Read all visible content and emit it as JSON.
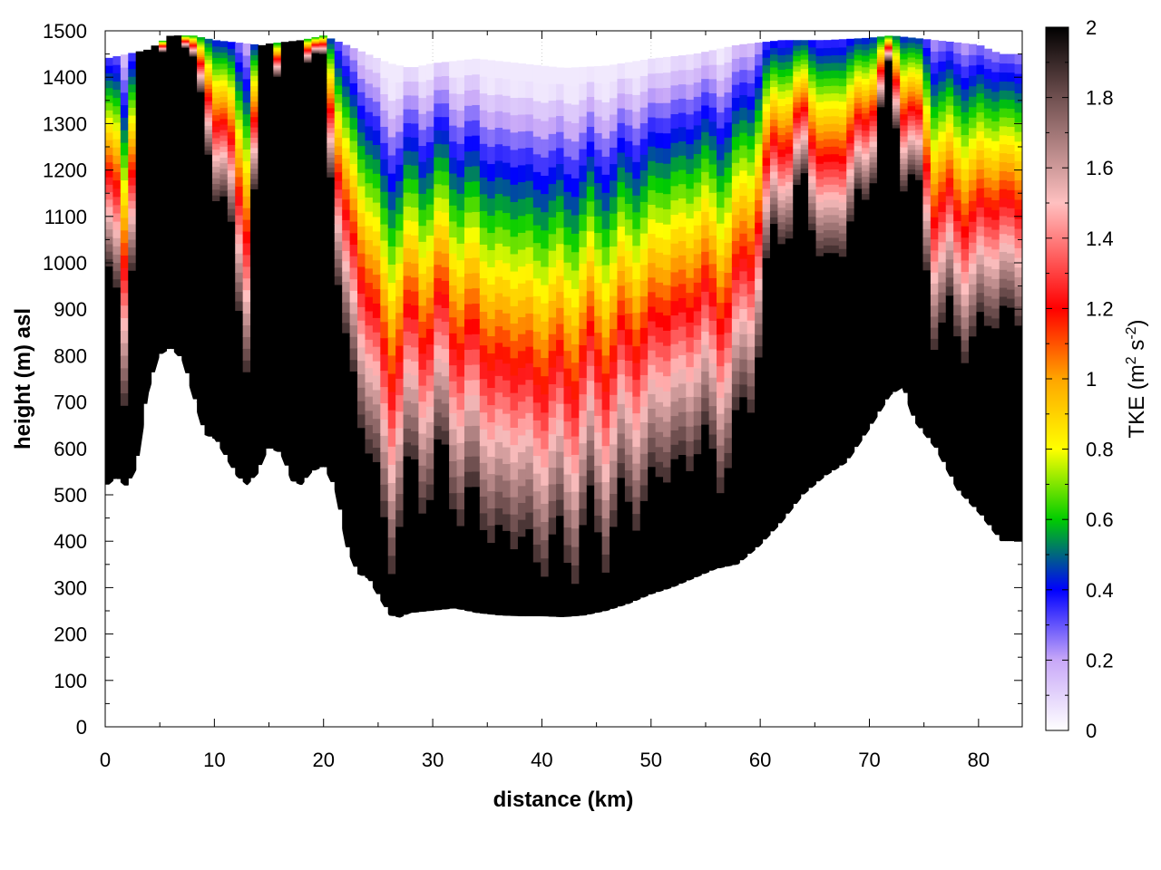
{
  "chart_data": {
    "type": "heatmap",
    "title": "",
    "xlabel": "distance (km)",
    "ylabel": "height (m) asl",
    "colorbar_label": "TKE (m² s⁻²)",
    "colorbar_label_parts": {
      "base": "TKE (m",
      "sup1": "2",
      "mid": " s",
      "sup2": "-2",
      "end": ")"
    },
    "xlim": [
      0,
      84
    ],
    "ylim": [
      0,
      1500
    ],
    "clim": [
      0,
      2
    ],
    "x_ticks": [
      0,
      10,
      20,
      30,
      40,
      50,
      60,
      70,
      80
    ],
    "y_ticks": [
      0,
      100,
      200,
      300,
      400,
      500,
      600,
      700,
      800,
      900,
      1000,
      1100,
      1200,
      1300,
      1400,
      1500
    ],
    "colorbar_ticks": [
      0,
      0.2,
      0.4,
      0.6,
      0.8,
      1,
      1.2,
      1.4,
      1.6,
      1.8,
      2
    ],
    "grid": true,
    "colormap": [
      {
        "v": 0.0,
        "c": "#ffffff"
      },
      {
        "v": 0.2,
        "c": "#c8a8f8"
      },
      {
        "v": 0.4,
        "c": "#0000ff"
      },
      {
        "v": 0.6,
        "c": "#00cc00"
      },
      {
        "v": 0.8,
        "c": "#ffff00"
      },
      {
        "v": 1.0,
        "c": "#ffa500"
      },
      {
        "v": 1.2,
        "c": "#ff0000"
      },
      {
        "v": 1.5,
        "c": "#ffc0c0"
      },
      {
        "v": 1.8,
        "c": "#705050"
      },
      {
        "v": 2.0,
        "c": "#000000"
      }
    ],
    "terrain": {
      "x_km": [
        0,
        1,
        2,
        3,
        4,
        5,
        6,
        7,
        8,
        9,
        10,
        11,
        12,
        13,
        14,
        15,
        16,
        17,
        18,
        19,
        20,
        21,
        22,
        23,
        24,
        25,
        26,
        27,
        28,
        30,
        32,
        34,
        36,
        38,
        40,
        42,
        44,
        46,
        48,
        50,
        52,
        54,
        56,
        58,
        60,
        62,
        64,
        66,
        68,
        70,
        72,
        73,
        74,
        76,
        78,
        80,
        82,
        84
      ],
      "height_m": [
        515,
        535,
        515,
        560,
        720,
        800,
        815,
        790,
        710,
        630,
        620,
        580,
        540,
        520,
        545,
        600,
        590,
        530,
        520,
        550,
        560,
        510,
        390,
        330,
        320,
        280,
        240,
        235,
        245,
        250,
        255,
        245,
        240,
        238,
        238,
        236,
        240,
        250,
        265,
        285,
        300,
        320,
        340,
        350,
        390,
        440,
        500,
        540,
        570,
        640,
        715,
        730,
        660,
        600,
        510,
        460,
        400,
        400
      ]
    },
    "model_top": {
      "x_km": [
        0,
        2,
        4,
        6,
        8,
        10,
        14,
        18,
        20,
        22,
        24,
        26,
        28,
        30,
        34,
        38,
        42,
        46,
        50,
        54,
        58,
        62,
        66,
        70,
        72,
        76,
        80,
        82,
        84
      ],
      "height_m": [
        1440,
        1450,
        1460,
        1490,
        1490,
        1480,
        1470,
        1480,
        1490,
        1470,
        1450,
        1430,
        1420,
        1430,
        1440,
        1430,
        1420,
        1425,
        1440,
        1450,
        1470,
        1480,
        1480,
        1485,
        1490,
        1480,
        1470,
        1450,
        1450
      ]
    },
    "tke_layer_top": {
      "x_km": [
        0,
        1,
        2,
        3,
        4,
        5,
        6,
        7,
        8,
        9,
        10,
        11,
        12,
        13,
        14,
        15,
        16,
        17,
        18,
        19,
        20,
        21,
        22,
        23,
        24,
        25,
        26,
        27,
        28,
        30,
        32,
        34,
        36,
        38,
        40,
        42,
        44,
        46,
        48,
        50,
        52,
        54,
        56,
        58,
        60,
        62,
        64,
        66,
        68,
        70,
        72,
        74,
        76,
        78,
        80,
        82,
        84
      ],
      "height_m": [
        950,
        880,
        700,
        1500,
        1500,
        1500,
        1500,
        1500,
        1450,
        1300,
        1200,
        1100,
        950,
        850,
        1300,
        1500,
        1500,
        1500,
        1500,
        1500,
        1400,
        1050,
        850,
        720,
        620,
        500,
        380,
        470,
        520,
        560,
        520,
        460,
        420,
        400,
        380,
        380,
        420,
        430,
        470,
        520,
        560,
        600,
        580,
        600,
        880,
        1100,
        1150,
        1000,
        1050,
        1200,
        1380,
        1150,
        900,
        830,
        860,
        880,
        920
      ]
    }
  }
}
